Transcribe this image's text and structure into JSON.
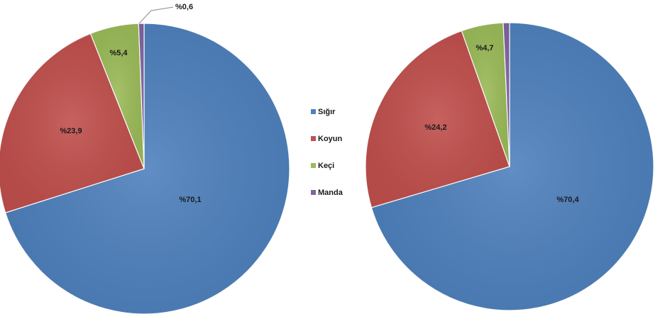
{
  "legend": {
    "items": [
      {
        "label": "Sığır",
        "color": "#4F81BD"
      },
      {
        "label": "Koyun",
        "color": "#C0504D"
      },
      {
        "label": "Keçi",
        "color": "#9BBB59"
      },
      {
        "label": "Manda",
        "color": "#8064A2"
      }
    ]
  },
  "chart_data": [
    {
      "type": "pie",
      "categories": [
        "Sığır",
        "Koyun",
        "Keçi",
        "Manda"
      ],
      "values": [
        70.1,
        23.9,
        5.4,
        0.6
      ],
      "labels": [
        "%70,1",
        "%23,9",
        "%5,4",
        "%0,6"
      ],
      "colors": [
        "#4F81BD",
        "#C0504D",
        "#9BBB59",
        "#8064A2"
      ],
      "start": "top, clockwise, Sığır first",
      "title": "",
      "legend": "right"
    },
    {
      "type": "pie",
      "categories": [
        "Sığır",
        "Koyun",
        "Keçi",
        "Manda"
      ],
      "values": [
        70.4,
        24.2,
        4.7,
        0.7
      ],
      "labels": [
        "%70,4",
        "%24,2",
        "%4,7",
        ""
      ],
      "colors": [
        "#4F81BD",
        "#C0504D",
        "#9BBB59",
        "#8064A2"
      ],
      "start": "top, clockwise, Sığır first",
      "title": "",
      "legend": "left"
    }
  ]
}
